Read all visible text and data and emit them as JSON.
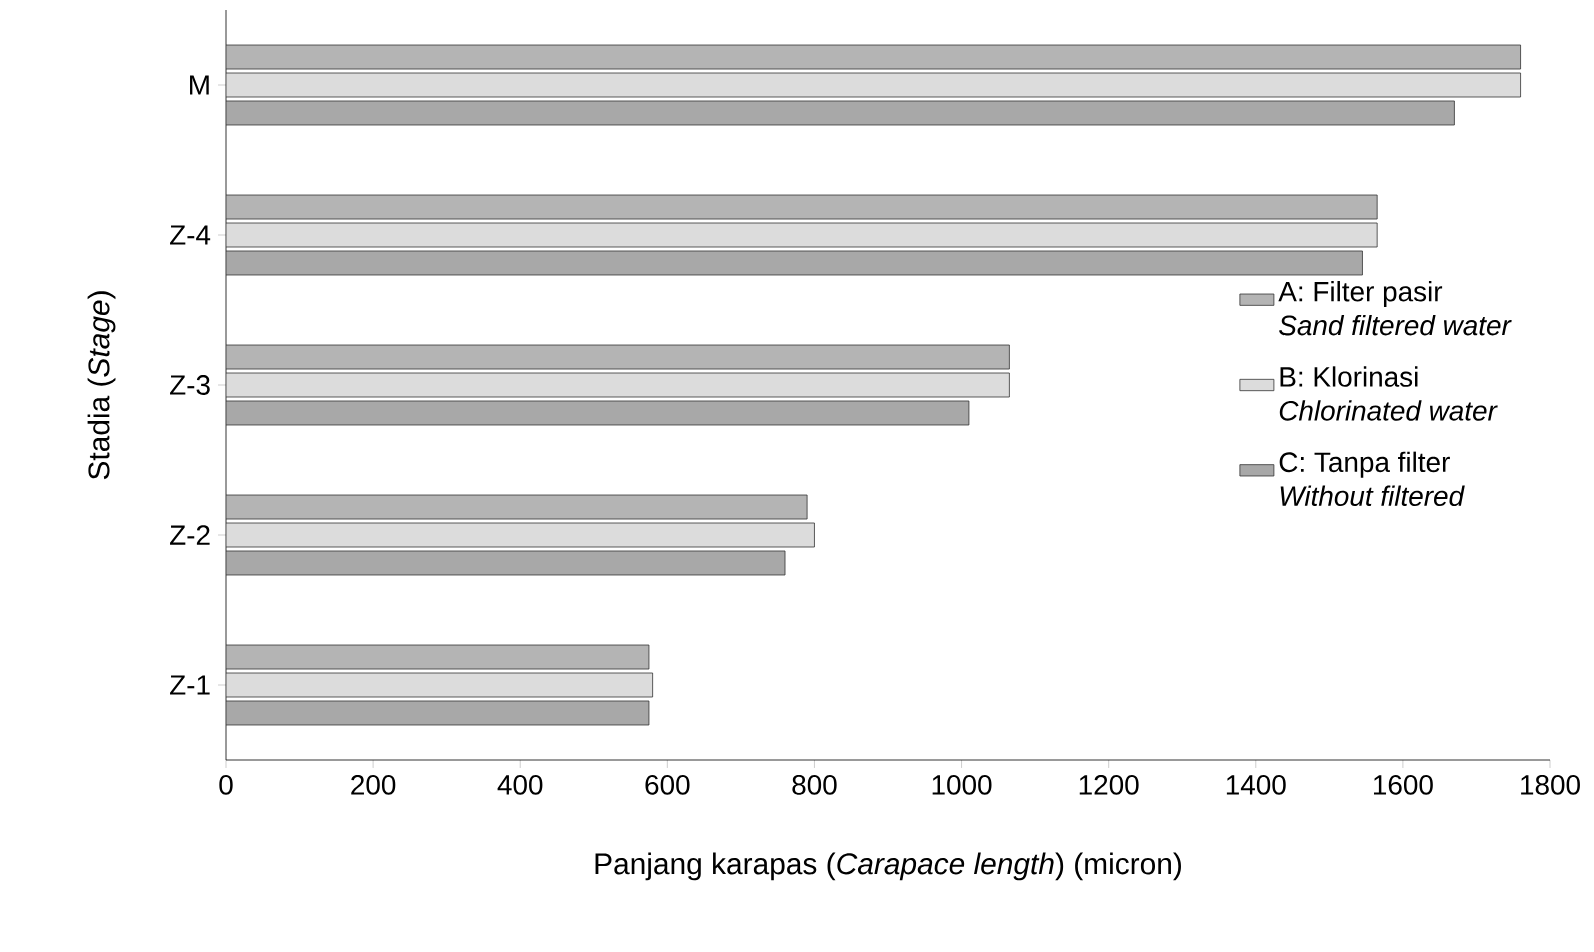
{
  "chart_data": {
    "type": "bar",
    "orientation": "horizontal",
    "xlabel": "Panjang karapas (*Carapace length*) (micron)",
    "ylabel": "Stadia (*Stage*)",
    "categories": [
      "M",
      "Z-4",
      "Z-3",
      "Z-2",
      "Z-1"
    ],
    "series": [
      {
        "name": "A: Filter pasir *Sand filtered water*",
        "color": "#b4b4b4",
        "values": [
          1760,
          1565,
          1065,
          790,
          575
        ]
      },
      {
        "name": "B: Klorinasi *Chlorinated water*",
        "color": "#dcdcdc",
        "values": [
          1760,
          1565,
          1065,
          800,
          580
        ]
      },
      {
        "name": "C: Tanpa filter *Without filtered*",
        "color": "#a8a8a8",
        "values": [
          1670,
          1545,
          1010,
          760,
          575
        ]
      }
    ],
    "xlim": [
      0,
      1800
    ],
    "xticks": [
      0,
      200,
      400,
      600,
      800,
      1000,
      1200,
      1400,
      1600,
      1800
    ],
    "grid": false,
    "legend": "right"
  }
}
